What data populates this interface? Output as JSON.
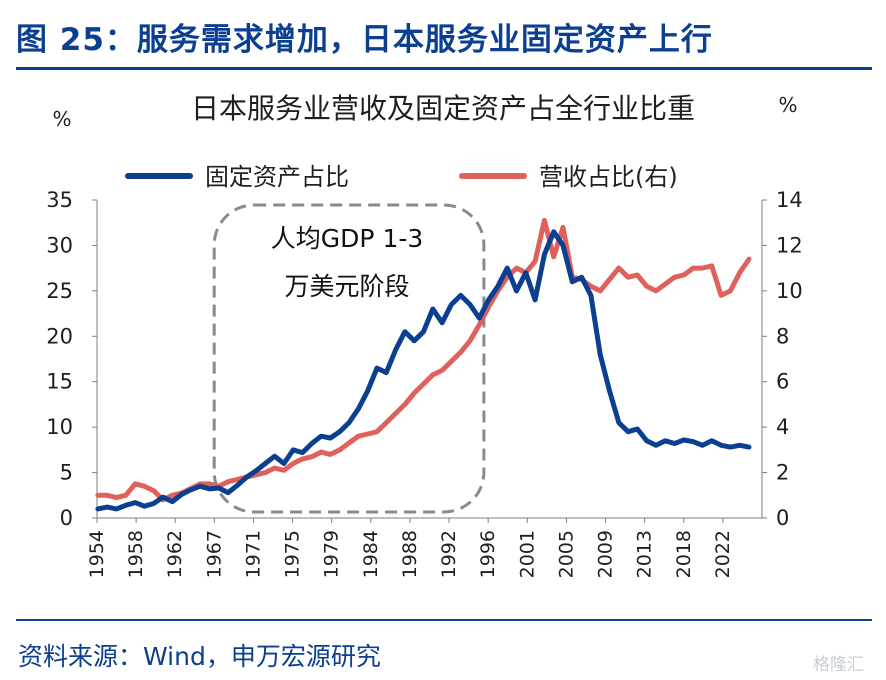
{
  "figure": {
    "title": "图 25：服务需求增加，日本服务业固定资产上行",
    "source": "资料来源：Wind，申万宏源研究",
    "watermark": "格隆汇"
  },
  "chart_data": {
    "type": "line",
    "title": "日本服务业营收及固定资产占全行业比重",
    "left_unit": "%",
    "right_unit": "%",
    "x_tick_labels": [
      "1954",
      "1958",
      "1962",
      "1967",
      "1971",
      "1975",
      "1979",
      "1984",
      "1988",
      "1992",
      "1996",
      "2001",
      "2005",
      "2009",
      "2013",
      "2018",
      "2022"
    ],
    "y_left": {
      "min": 0,
      "max": 35,
      "ticks": [
        0,
        5,
        10,
        15,
        20,
        25,
        30,
        35
      ]
    },
    "y_right": {
      "min": 0,
      "max": 14,
      "ticks": [
        0,
        2,
        4,
        6,
        8,
        10,
        12,
        14
      ]
    },
    "legend_position": "top",
    "grid": false,
    "annotation": {
      "lines": [
        "人均GDP 1-3",
        "万美元阶段"
      ],
      "x_range": [
        1966.5,
        1995.5
      ]
    },
    "series": [
      {
        "name": "固定资产占比",
        "axis": "left",
        "color": "#0b3f91",
        "points": [
          [
            1954,
            1.0
          ],
          [
            1955,
            1.2
          ],
          [
            1956,
            1.0
          ],
          [
            1957,
            1.4
          ],
          [
            1958,
            1.7
          ],
          [
            1959,
            1.3
          ],
          [
            1960,
            1.6
          ],
          [
            1961,
            2.3
          ],
          [
            1962,
            1.8
          ],
          [
            1963,
            2.6
          ],
          [
            1964,
            3.1
          ],
          [
            1965,
            3.5
          ],
          [
            1966,
            3.2
          ],
          [
            1967,
            3.3
          ],
          [
            1968,
            2.8
          ],
          [
            1969,
            3.6
          ],
          [
            1970,
            4.5
          ],
          [
            1971,
            5.2
          ],
          [
            1972,
            6.0
          ],
          [
            1973,
            6.8
          ],
          [
            1974,
            6.0
          ],
          [
            1975,
            7.5
          ],
          [
            1976,
            7.2
          ],
          [
            1977,
            8.2
          ],
          [
            1978,
            9.0
          ],
          [
            1979,
            8.8
          ],
          [
            1980,
            9.5
          ],
          [
            1981,
            10.5
          ],
          [
            1982,
            12.0
          ],
          [
            1983,
            14.0
          ],
          [
            1984,
            16.5
          ],
          [
            1985,
            16.0
          ],
          [
            1986,
            18.5
          ],
          [
            1987,
            20.5
          ],
          [
            1988,
            19.5
          ],
          [
            1989,
            20.5
          ],
          [
            1990,
            23.0
          ],
          [
            1991,
            21.5
          ],
          [
            1992,
            23.5
          ],
          [
            1993,
            24.5
          ],
          [
            1994,
            23.5
          ],
          [
            1995,
            22.0
          ],
          [
            1996,
            24.0
          ],
          [
            1997,
            25.5
          ],
          [
            1998,
            27.5
          ],
          [
            1999,
            25.0
          ],
          [
            2000,
            27.0
          ],
          [
            2001,
            24.0
          ],
          [
            2002,
            29.0
          ],
          [
            2003,
            31.5
          ],
          [
            2004,
            30.0
          ],
          [
            2005,
            26.0
          ],
          [
            2006,
            26.5
          ],
          [
            2007,
            24.5
          ],
          [
            2008,
            18.0
          ],
          [
            2009,
            14.0
          ],
          [
            2010,
            10.5
          ],
          [
            2011,
            9.5
          ],
          [
            2012,
            9.8
          ],
          [
            2013,
            8.5
          ],
          [
            2014,
            8.0
          ],
          [
            2015,
            8.5
          ],
          [
            2016,
            8.2
          ],
          [
            2017,
            8.6
          ],
          [
            2018,
            8.4
          ],
          [
            2019,
            8.0
          ],
          [
            2020,
            8.5
          ],
          [
            2021,
            8.0
          ],
          [
            2022,
            7.8
          ],
          [
            2023,
            8.0
          ],
          [
            2024,
            7.8
          ]
        ]
      },
      {
        "name": "营收占比(右)",
        "axis": "right",
        "color": "#e0605c",
        "points": [
          [
            1954,
            1.0
          ],
          [
            1955,
            1.0
          ],
          [
            1956,
            0.9
          ],
          [
            1957,
            1.0
          ],
          [
            1958,
            1.5
          ],
          [
            1959,
            1.4
          ],
          [
            1960,
            1.2
          ],
          [
            1961,
            0.8
          ],
          [
            1962,
            1.0
          ],
          [
            1963,
            1.1
          ],
          [
            1964,
            1.3
          ],
          [
            1965,
            1.5
          ],
          [
            1966,
            1.5
          ],
          [
            1967,
            1.4
          ],
          [
            1968,
            1.6
          ],
          [
            1969,
            1.7
          ],
          [
            1970,
            1.8
          ],
          [
            1971,
            1.9
          ],
          [
            1972,
            2.0
          ],
          [
            1973,
            2.2
          ],
          [
            1974,
            2.1
          ],
          [
            1975,
            2.4
          ],
          [
            1976,
            2.6
          ],
          [
            1977,
            2.7
          ],
          [
            1978,
            2.9
          ],
          [
            1979,
            2.8
          ],
          [
            1980,
            3.0
          ],
          [
            1981,
            3.3
          ],
          [
            1982,
            3.6
          ],
          [
            1983,
            3.7
          ],
          [
            1984,
            3.8
          ],
          [
            1985,
            4.2
          ],
          [
            1986,
            4.6
          ],
          [
            1987,
            5.0
          ],
          [
            1988,
            5.5
          ],
          [
            1989,
            5.9
          ],
          [
            1990,
            6.3
          ],
          [
            1991,
            6.5
          ],
          [
            1992,
            6.9
          ],
          [
            1993,
            7.3
          ],
          [
            1994,
            7.8
          ],
          [
            1995,
            8.5
          ],
          [
            1996,
            9.3
          ],
          [
            1997,
            10.0
          ],
          [
            1998,
            10.6
          ],
          [
            1999,
            11.0
          ],
          [
            2000,
            10.8
          ],
          [
            2001,
            11.3
          ],
          [
            2002,
            13.1
          ],
          [
            2003,
            11.5
          ],
          [
            2004,
            12.8
          ],
          [
            2005,
            10.6
          ],
          [
            2006,
            10.5
          ],
          [
            2007,
            10.2
          ],
          [
            2008,
            10.0
          ],
          [
            2009,
            10.5
          ],
          [
            2010,
            11.0
          ],
          [
            2011,
            10.6
          ],
          [
            2012,
            10.7
          ],
          [
            2013,
            10.2
          ],
          [
            2014,
            10.0
          ],
          [
            2015,
            10.3
          ],
          [
            2016,
            10.6
          ],
          [
            2017,
            10.7
          ],
          [
            2018,
            11.0
          ],
          [
            2019,
            11.0
          ],
          [
            2020,
            11.1
          ],
          [
            2021,
            9.8
          ],
          [
            2022,
            10.0
          ],
          [
            2023,
            10.8
          ],
          [
            2024,
            11.4
          ]
        ]
      }
    ]
  }
}
